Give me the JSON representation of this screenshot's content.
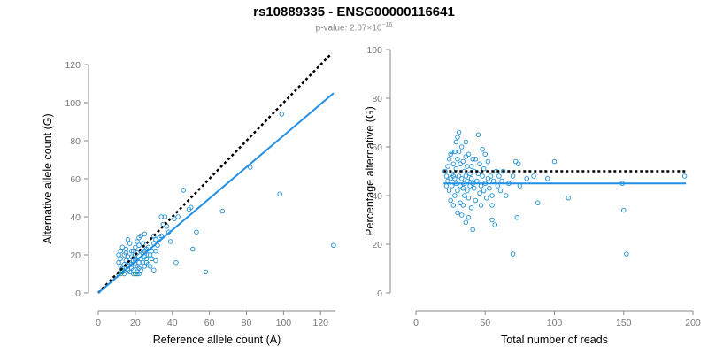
{
  "header": {
    "title": "rs10889335 - ENSG00000116641",
    "pvalue_prefix": "p-value: 2.07×10",
    "pvalue_exp": "−16"
  },
  "colors": {
    "points": "#1f8fd6",
    "fit": "#1f8fe8",
    "reference": "#000000",
    "axis": "#888888",
    "highlight": "#2e9a55"
  },
  "chart_data": [
    {
      "type": "scatter",
      "title": "",
      "xlabel": "Reference allele count (A)",
      "ylabel": "Alternative allele count (G)",
      "xlim": [
        0,
        128
      ],
      "ylim": [
        0,
        120
      ],
      "xticks": [
        "0",
        "20",
        "40",
        "60",
        "80",
        "100",
        "120"
      ],
      "yticks": [
        "0",
        "20",
        "40",
        "60",
        "80",
        "100",
        "120"
      ],
      "reference_line": {
        "label": "y = x",
        "from": [
          0,
          0
        ],
        "to": [
          126,
          126
        ]
      },
      "fit_line": {
        "from": [
          0,
          0
        ],
        "to": [
          127,
          105
        ]
      },
      "points": [
        [
          11,
          20
        ],
        [
          12,
          18
        ],
        [
          11,
          16
        ],
        [
          12,
          14
        ],
        [
          13,
          12
        ],
        [
          12,
          11
        ],
        [
          14,
          10
        ],
        [
          13,
          13
        ],
        [
          14,
          15
        ],
        [
          15,
          17
        ],
        [
          16,
          19
        ],
        [
          15,
          21
        ],
        [
          14,
          13
        ],
        [
          16,
          12
        ],
        [
          17,
          11
        ],
        [
          16,
          14
        ],
        [
          17,
          16
        ],
        [
          18,
          15
        ],
        [
          16,
          28
        ],
        [
          18,
          13
        ],
        [
          19,
          12
        ],
        [
          19,
          17
        ],
        [
          20,
          18
        ],
        [
          20,
          20
        ],
        [
          21,
          21
        ],
        [
          19,
          22
        ],
        [
          20,
          24
        ],
        [
          22,
          25
        ],
        [
          21,
          27
        ],
        [
          22,
          29
        ],
        [
          20,
          15
        ],
        [
          21,
          14
        ],
        [
          22,
          13
        ],
        [
          23,
          12
        ],
        [
          21,
          11
        ],
        [
          24,
          16
        ],
        [
          23,
          18
        ],
        [
          25,
          19
        ],
        [
          24,
          21
        ],
        [
          25,
          22
        ],
        [
          26,
          23
        ],
        [
          24,
          26
        ],
        [
          23,
          30
        ],
        [
          25,
          31
        ],
        [
          27,
          24
        ],
        [
          26,
          18
        ],
        [
          27,
          15
        ],
        [
          28,
          14
        ],
        [
          28,
          20
        ],
        [
          29,
          22
        ],
        [
          30,
          26
        ],
        [
          30,
          30
        ],
        [
          31,
          28
        ],
        [
          32,
          25
        ],
        [
          31,
          22
        ],
        [
          33,
          29
        ],
        [
          34,
          30
        ],
        [
          34,
          40
        ],
        [
          36,
          40
        ],
        [
          37,
          35
        ],
        [
          35,
          36
        ],
        [
          38,
          32
        ],
        [
          39,
          27
        ],
        [
          41,
          39
        ],
        [
          42,
          16
        ],
        [
          43,
          40
        ],
        [
          46,
          54
        ],
        [
          49,
          44
        ],
        [
          50,
          45
        ],
        [
          51,
          23
        ],
        [
          53,
          32
        ],
        [
          58,
          11
        ],
        [
          67,
          43
        ],
        [
          82,
          66
        ],
        [
          99,
          94
        ],
        [
          98,
          52
        ],
        [
          127,
          25
        ],
        [
          19,
          10
        ],
        [
          21,
          10
        ],
        [
          22,
          10
        ],
        [
          15,
          23
        ],
        [
          17,
          26
        ],
        [
          13,
          24
        ],
        [
          12,
          22
        ],
        [
          14,
          20
        ],
        [
          18,
          19
        ],
        [
          20,
          17
        ],
        [
          22,
          16
        ],
        [
          26,
          16
        ],
        [
          27,
          20
        ],
        [
          29,
          18
        ],
        [
          30,
          12
        ],
        [
          18,
          22
        ],
        [
          23,
          22
        ],
        [
          31,
          17
        ],
        [
          25,
          14
        ]
      ],
      "highlight_points": [
        [
          11,
          10
        ],
        [
          12,
          10
        ],
        [
          13,
          11
        ],
        [
          20,
          10
        ]
      ]
    },
    {
      "type": "scatter",
      "title": "",
      "xlabel": "Total number of reads",
      "ylabel": "Percentage alternative (G)",
      "xlim": [
        0,
        200
      ],
      "ylim": [
        0,
        100
      ],
      "xticks": [
        "0",
        "50",
        "100",
        "150",
        "200"
      ],
      "yticks": [
        "0",
        "20",
        "40",
        "60",
        "80",
        "100"
      ],
      "reference_line": {
        "label": "50%",
        "y": 50,
        "from_x": 20,
        "to_x": 195
      },
      "fit_line": {
        "y": 45,
        "from_x": 20,
        "to_x": 195
      },
      "points": [
        [
          21,
          50
        ],
        [
          22,
          48
        ],
        [
          22,
          44
        ],
        [
          23,
          52
        ],
        [
          23,
          46
        ],
        [
          24,
          55
        ],
        [
          24,
          42
        ],
        [
          25,
          57
        ],
        [
          25,
          38
        ],
        [
          25,
          47
        ],
        [
          26,
          49
        ],
        [
          26,
          44
        ],
        [
          27,
          53
        ],
        [
          27,
          36
        ],
        [
          28,
          58
        ],
        [
          28,
          40
        ],
        [
          28,
          47
        ],
        [
          29,
          62
        ],
        [
          29,
          51
        ],
        [
          29,
          45
        ],
        [
          30,
          64
        ],
        [
          30,
          55
        ],
        [
          30,
          42
        ],
        [
          30,
          33
        ],
        [
          31,
          48
        ],
        [
          31,
          58
        ],
        [
          31,
          66
        ],
        [
          32,
          44
        ],
        [
          32,
          37
        ],
        [
          32,
          53
        ],
        [
          33,
          60
        ],
        [
          33,
          47
        ],
        [
          33,
          32
        ],
        [
          34,
          54
        ],
        [
          34,
          43
        ],
        [
          34,
          36
        ],
        [
          35,
          50
        ],
        [
          35,
          45
        ],
        [
          35,
          40
        ],
        [
          36,
          56
        ],
        [
          36,
          48
        ],
        [
          36,
          29
        ],
        [
          37,
          52
        ],
        [
          37,
          42
        ],
        [
          37,
          46
        ],
        [
          38,
          57
        ],
        [
          38,
          39
        ],
        [
          38,
          31
        ],
        [
          39,
          49
        ],
        [
          39,
          44
        ],
        [
          40,
          52
        ],
        [
          40,
          47
        ],
        [
          40,
          35
        ],
        [
          41,
          26
        ],
        [
          41,
          45
        ],
        [
          42,
          50
        ],
        [
          42,
          43
        ],
        [
          43,
          55
        ],
        [
          43,
          38
        ],
        [
          44,
          46
        ],
        [
          45,
          65
        ],
        [
          45,
          49
        ],
        [
          46,
          41
        ],
        [
          46,
          53
        ],
        [
          47,
          36
        ],
        [
          47,
          44
        ],
        [
          48,
          59
        ],
        [
          48,
          48
        ],
        [
          49,
          42
        ],
        [
          49,
          51
        ],
        [
          50,
          45
        ],
        [
          50,
          57
        ],
        [
          51,
          39
        ],
        [
          52,
          47
        ],
        [
          52,
          54
        ],
        [
          53,
          43
        ],
        [
          54,
          48
        ],
        [
          55,
          40
        ],
        [
          55,
          30
        ],
        [
          56,
          46
        ],
        [
          57,
          28
        ],
        [
          58,
          50
        ],
        [
          59,
          44
        ],
        [
          60,
          48
        ],
        [
          61,
          42
        ],
        [
          62,
          46
        ],
        [
          63,
          50
        ],
        [
          65,
          40
        ],
        [
          67,
          45
        ],
        [
          70,
          16
        ],
        [
          70,
          48
        ],
        [
          72,
          54
        ],
        [
          73,
          31
        ],
        [
          74,
          53
        ],
        [
          75,
          44
        ],
        [
          80,
          47
        ],
        [
          85,
          48
        ],
        [
          88,
          37
        ],
        [
          95,
          47
        ],
        [
          100,
          54
        ],
        [
          110,
          39
        ],
        [
          149,
          45
        ],
        [
          150,
          34
        ],
        [
          152,
          16
        ],
        [
          194,
          48
        ],
        [
          26,
          58
        ],
        [
          27,
          48
        ],
        [
          36,
          62
        ],
        [
          41,
          55
        ],
        [
          55,
          36
        ]
      ],
      "highlight_points": []
    }
  ]
}
